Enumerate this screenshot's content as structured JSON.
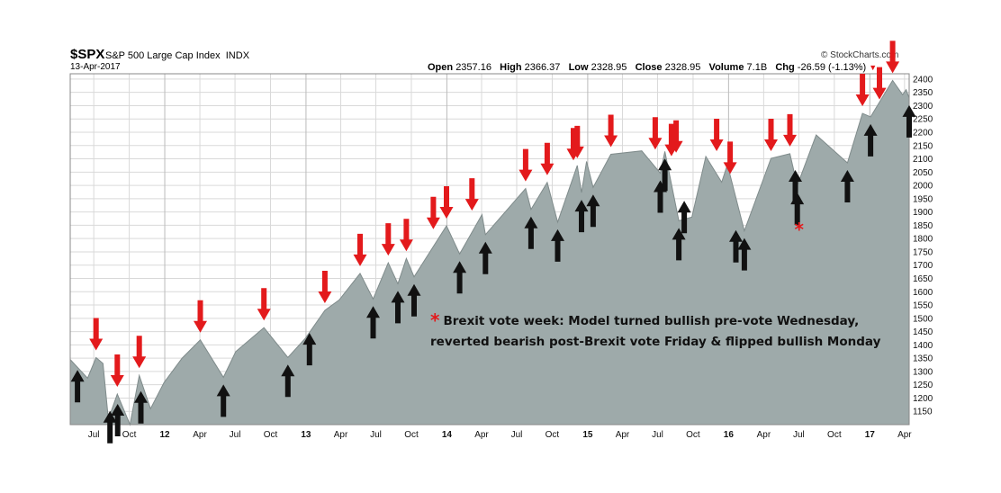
{
  "header": {
    "symbol": "$SPX",
    "name": "S&P 500 Large Cap Index",
    "exchange": "INDX",
    "date": "13-Apr-2017",
    "source": "© StockCharts.com",
    "open_label": "Open",
    "open": "2357.16",
    "high_label": "High",
    "high": "2366.37",
    "low_label": "Low",
    "low": "2328.95",
    "close_label": "Close",
    "close": "2328.95",
    "volume_label": "Volume",
    "volume": "7.1B",
    "chg_label": "Chg",
    "chg": "-26.59 (-1.13%)"
  },
  "annotation": {
    "marker": "*",
    "line1": "Brexit vote week: Model turned bullish pre-vote Wednesday,",
    "line2": "reverted bearish post-Brexit vote Friday & flipped bullish Monday"
  },
  "colors": {
    "area_fill": "#9eaaaa",
    "area_line": "#7f8b8b",
    "sell_arrow": "#e31a1c",
    "buy_arrow": "#111111",
    "grid": "#d9d9d9"
  },
  "chart_data": {
    "type": "area",
    "series": [
      {
        "name": "$SPX",
        "points": [
          [
            "2011-05-01",
            1345
          ],
          [
            "2011-06-15",
            1275
          ],
          [
            "2011-07-07",
            1352
          ],
          [
            "2011-07-25",
            1330
          ],
          [
            "2011-08-08",
            1120
          ],
          [
            "2011-08-31",
            1215
          ],
          [
            "2011-10-03",
            1100
          ],
          [
            "2011-10-27",
            1285
          ],
          [
            "2011-11-25",
            1160
          ],
          [
            "2011-12-30",
            1258
          ],
          [
            "2012-02-15",
            1350
          ],
          [
            "2012-04-02",
            1419
          ],
          [
            "2012-06-01",
            1278
          ],
          [
            "2012-07-03",
            1375
          ],
          [
            "2012-09-14",
            1465
          ],
          [
            "2012-11-15",
            1353
          ],
          [
            "2012-12-31",
            1426
          ],
          [
            "2013-02-19",
            1530
          ],
          [
            "2013-03-28",
            1569
          ],
          [
            "2013-05-21",
            1669
          ],
          [
            "2013-06-24",
            1573
          ],
          [
            "2013-08-02",
            1709
          ],
          [
            "2013-08-27",
            1630
          ],
          [
            "2013-09-18",
            1725
          ],
          [
            "2013-10-08",
            1656
          ],
          [
            "2013-12-31",
            1848
          ],
          [
            "2014-02-03",
            1742
          ],
          [
            "2014-04-02",
            1890
          ],
          [
            "2014-04-11",
            1815
          ],
          [
            "2014-07-24",
            1988
          ],
          [
            "2014-08-07",
            1910
          ],
          [
            "2014-09-18",
            2011
          ],
          [
            "2014-10-15",
            1862
          ],
          [
            "2014-12-05",
            2075
          ],
          [
            "2014-12-16",
            1973
          ],
          [
            "2014-12-29",
            2090
          ],
          [
            "2015-01-15",
            1993
          ],
          [
            "2015-03-02",
            2117
          ],
          [
            "2015-05-21",
            2130
          ],
          [
            "2015-07-08",
            2046
          ],
          [
            "2015-07-20",
            2128
          ],
          [
            "2015-08-25",
            1867
          ],
          [
            "2015-09-28",
            1881
          ],
          [
            "2015-11-03",
            2109
          ],
          [
            "2015-12-14",
            2012
          ],
          [
            "2015-12-29",
            2078
          ],
          [
            "2016-02-11",
            1829
          ],
          [
            "2016-04-20",
            2102
          ],
          [
            "2016-06-08",
            2119
          ],
          [
            "2016-06-27",
            2000
          ],
          [
            "2016-08-15",
            2190
          ],
          [
            "2016-11-04",
            2085
          ],
          [
            "2016-12-13",
            2271
          ],
          [
            "2017-01-03",
            2258
          ],
          [
            "2017-03-01",
            2395
          ],
          [
            "2017-03-27",
            2341
          ],
          [
            "2017-04-05",
            2360
          ],
          [
            "2017-04-13",
            2329
          ]
        ]
      }
    ],
    "signals": {
      "sell": [
        [
          "2011-07-07",
          1352
        ],
        [
          "2011-08-31",
          1215
        ],
        [
          "2011-10-27",
          1285
        ],
        [
          "2012-04-02",
          1419
        ],
        [
          "2012-09-14",
          1465
        ],
        [
          "2013-02-19",
          1530
        ],
        [
          "2013-05-21",
          1669
        ],
        [
          "2013-08-02",
          1709
        ],
        [
          "2013-09-18",
          1725
        ],
        [
          "2013-11-27",
          1808
        ],
        [
          "2013-12-31",
          1848
        ],
        [
          "2014-03-07",
          1878
        ],
        [
          "2014-07-24",
          1988
        ],
        [
          "2014-09-18",
          2011
        ],
        [
          "2014-11-25",
          2067
        ],
        [
          "2014-12-05",
          2075
        ],
        [
          "2015-03-02",
          2117
        ],
        [
          "2015-06-25",
          2108
        ],
        [
          "2015-08-06",
          2083
        ],
        [
          "2015-08-18",
          2096
        ],
        [
          "2015-12-01",
          2102
        ],
        [
          "2016-01-05",
          2016
        ],
        [
          "2016-04-20",
          2102
        ],
        [
          "2016-06-08",
          2119
        ],
        [
          "2016-12-13",
          2271
        ],
        [
          "2017-01-26",
          2296
        ],
        [
          "2017-03-01",
          2395
        ]
      ],
      "buy": [
        [
          "2011-05-20",
          1333
        ],
        [
          "2011-08-12",
          1179
        ],
        [
          "2011-09-01",
          1205
        ],
        [
          "2011-10-31",
          1253
        ],
        [
          "2012-06-01",
          1278
        ],
        [
          "2012-11-15",
          1353
        ],
        [
          "2013-01-10",
          1472
        ],
        [
          "2013-06-24",
          1573
        ],
        [
          "2013-08-27",
          1630
        ],
        [
          "2013-10-08",
          1656
        ],
        [
          "2014-02-03",
          1742
        ],
        [
          "2014-04-11",
          1815
        ],
        [
          "2014-08-07",
          1910
        ],
        [
          "2014-10-15",
          1862
        ],
        [
          "2014-12-16",
          1973
        ],
        [
          "2015-01-15",
          1993
        ],
        [
          "2015-07-08",
          2046
        ],
        [
          "2015-07-20",
          2128
        ],
        [
          "2015-08-25",
          1867
        ],
        [
          "2015-09-08",
          1969
        ],
        [
          "2016-01-20",
          1859
        ],
        [
          "2016-02-11",
          1829
        ],
        [
          "2016-06-22",
          2085
        ],
        [
          "2016-06-27",
          2000
        ],
        [
          "2016-11-04",
          2085
        ],
        [
          "2017-01-03",
          2258
        ],
        [
          "2017-04-13",
          2329
        ]
      ],
      "highlight": [
        "2016-06-27",
        1810
      ]
    },
    "x_range": [
      "2011-05-01",
      "2017-04-13"
    ],
    "ylim": [
      1100,
      2420
    ],
    "yticks": [
      1150,
      1200,
      1250,
      1300,
      1350,
      1400,
      1450,
      1500,
      1550,
      1600,
      1650,
      1700,
      1750,
      1800,
      1850,
      1900,
      1950,
      2000,
      2050,
      2100,
      2150,
      2200,
      2250,
      2300,
      2350,
      2400
    ],
    "xticks": [
      [
        "2011-07-01",
        "Jul",
        false
      ],
      [
        "2011-10-01",
        "Oct",
        false
      ],
      [
        "2012-01-01",
        "12",
        true
      ],
      [
        "2012-04-01",
        "Apr",
        false
      ],
      [
        "2012-07-01",
        "Jul",
        false
      ],
      [
        "2012-10-01",
        "Oct",
        false
      ],
      [
        "2013-01-01",
        "13",
        true
      ],
      [
        "2013-04-01",
        "Apr",
        false
      ],
      [
        "2013-07-01",
        "Jul",
        false
      ],
      [
        "2013-10-01",
        "Oct",
        false
      ],
      [
        "2014-01-01",
        "14",
        true
      ],
      [
        "2014-04-01",
        "Apr",
        false
      ],
      [
        "2014-07-01",
        "Jul",
        false
      ],
      [
        "2014-10-01",
        "Oct",
        false
      ],
      [
        "2015-01-01",
        "15",
        true
      ],
      [
        "2015-04-01",
        "Apr",
        false
      ],
      [
        "2015-07-01",
        "Jul",
        false
      ],
      [
        "2015-10-01",
        "Oct",
        false
      ],
      [
        "2016-01-01",
        "16",
        true
      ],
      [
        "2016-04-01",
        "Apr",
        false
      ],
      [
        "2016-07-01",
        "Jul",
        false
      ],
      [
        "2016-10-01",
        "Oct",
        false
      ],
      [
        "2017-01-01",
        "17",
        true
      ],
      [
        "2017-04-01",
        "Apr",
        false
      ]
    ],
    "grid": true
  }
}
